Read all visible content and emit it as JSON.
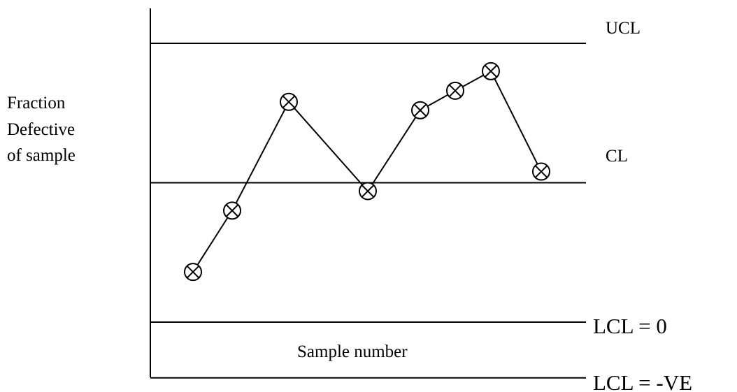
{
  "chart_data": {
    "type": "line",
    "title": "",
    "xlabel": "Sample number",
    "ylabel_lines": [
      "Fraction",
      "Defective",
      "of sample"
    ],
    "reference_lines": [
      {
        "label": "UCL",
        "value": 1.0
      },
      {
        "label": "CL",
        "value": 0.5
      },
      {
        "label": "LCL = 0",
        "value": 0.0
      },
      {
        "label": "LCL = -VE",
        "value": -0.2
      }
    ],
    "series": [
      {
        "marker": "circle-x",
        "x": [
          1,
          2,
          3,
          4,
          5,
          6,
          7,
          8
        ],
        "values": [
          0.18,
          0.4,
          0.79,
          0.47,
          0.76,
          0.83,
          0.9,
          0.54
        ]
      }
    ],
    "ylim": [
      -0.2,
      1.0
    ],
    "axis_tick_labels": false,
    "grid": false
  }
}
